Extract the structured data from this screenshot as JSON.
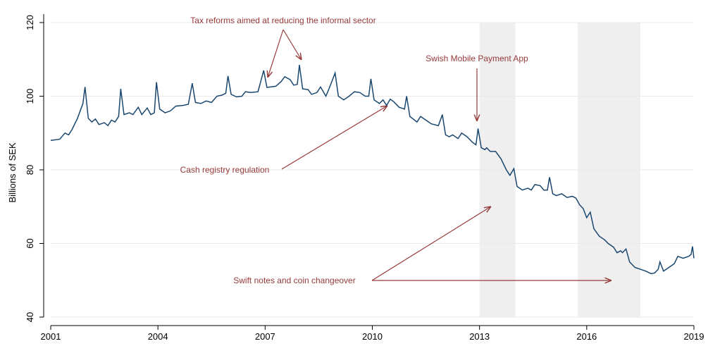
{
  "chart_data": {
    "type": "line",
    "y_label": "Billions of SEK",
    "color": "#1a476f",
    "shade_color": "#efefef",
    "shaded_periods": [
      [
        2013.0,
        2014.0
      ],
      [
        2015.75,
        2017.5
      ]
    ],
    "annotations": [
      "Tax reforms aimed at reducing the informal sector",
      "Swish Mobile Payment App",
      "Cash registry regulation",
      "Swift notes and coin changeover"
    ],
    "xlim": [
      2001,
      2019
    ],
    "xticks": [
      2001,
      2004,
      2007,
      2010,
      2013,
      2016,
      2019
    ],
    "ylim": [
      40,
      120
    ],
    "yticks": [
      40,
      60,
      80,
      100,
      120
    ],
    "grid": true,
    "x": [
      2001.0,
      2001.25,
      2001.4,
      2001.5,
      2001.6,
      2001.75,
      2001.9,
      2001.96,
      2002.05,
      2002.15,
      2002.25,
      2002.35,
      2002.5,
      2002.6,
      2002.7,
      2002.8,
      2002.9,
      2002.96,
      2003.05,
      2003.2,
      2003.3,
      2003.45,
      2003.55,
      2003.7,
      2003.8,
      2003.9,
      2003.96,
      2004.05,
      2004.2,
      2004.35,
      2004.5,
      2004.7,
      2004.85,
      2004.96,
      2005.05,
      2005.2,
      2005.35,
      2005.5,
      2005.65,
      2005.8,
      2005.9,
      2005.96,
      2006.05,
      2006.2,
      2006.35,
      2006.45,
      2006.6,
      2006.8,
      2006.96,
      2007.05,
      2007.3,
      2007.45,
      2007.55,
      2007.7,
      2007.8,
      2007.9,
      2007.96,
      2008.05,
      2008.2,
      2008.3,
      2008.45,
      2008.55,
      2008.7,
      2008.8,
      2008.96,
      2009.05,
      2009.2,
      2009.35,
      2009.5,
      2009.65,
      2009.8,
      2009.9,
      2009.96,
      2010.05,
      2010.2,
      2010.3,
      2010.4,
      2010.5,
      2010.6,
      2010.75,
      2010.9,
      2010.96,
      2011.05,
      2011.25,
      2011.35,
      2011.5,
      2011.65,
      2011.85,
      2011.96,
      2012.05,
      2012.15,
      2012.25,
      2012.4,
      2012.5,
      2012.65,
      2012.8,
      2012.9,
      2012.96,
      2013.05,
      2013.15,
      2013.2,
      2013.3,
      2013.45,
      2013.6,
      2013.75,
      2013.85,
      2013.96,
      2014.05,
      2014.2,
      2014.35,
      2014.45,
      2014.55,
      2014.7,
      2014.8,
      2014.9,
      2014.96,
      2015.05,
      2015.15,
      2015.3,
      2015.45,
      2015.6,
      2015.7,
      2015.8,
      2015.9,
      2016.0,
      2016.1,
      2016.2,
      2016.35,
      2016.5,
      2016.6,
      2016.75,
      2016.85,
      2016.95,
      2017.0,
      2017.1,
      2017.2,
      2017.35,
      2017.5,
      2017.65,
      2017.8,
      2017.9,
      2018.0,
      2018.05,
      2018.15,
      2018.3,
      2018.45,
      2018.55,
      2018.7,
      2018.85,
      2018.92,
      2018.96,
      2019.0
    ],
    "values": [
      88,
      88.3,
      90,
      89.5,
      91,
      94,
      98,
      102.5,
      94,
      93,
      93.8,
      92.3,
      92.8,
      92,
      93.5,
      93,
      94.5,
      102,
      95,
      95.5,
      95,
      97,
      95,
      96.8,
      95,
      95.5,
      103.8,
      96.5,
      95.5,
      96,
      97.3,
      97.5,
      97.8,
      103.5,
      98.3,
      98,
      98.7,
      98.3,
      100,
      100.3,
      100.8,
      105.5,
      100.5,
      99.8,
      100,
      101.2,
      101,
      101.2,
      107,
      102.4,
      102.7,
      104,
      105.3,
      104.5,
      103,
      103.2,
      108.5,
      102,
      101.8,
      100.5,
      101,
      102.5,
      100,
      102.3,
      106.3,
      100,
      99,
      100,
      101.2,
      101,
      100,
      100,
      104.7,
      99,
      98,
      99,
      97.5,
      99.2,
      98.5,
      97,
      96.5,
      100,
      94.5,
      93,
      94.5,
      93.5,
      92.5,
      92,
      95,
      89.5,
      89,
      89.5,
      88.5,
      90,
      89,
      87.5,
      86.8,
      91.2,
      86,
      85.5,
      86,
      85,
      85,
      83,
      80,
      78.5,
      80.3,
      75.5,
      74.5,
      75,
      74.5,
      76,
      75.7,
      74.5,
      74.5,
      78,
      73.5,
      73,
      73.5,
      72.5,
      72.8,
      72.3,
      70.5,
      69.5,
      67,
      68.5,
      64,
      62,
      61,
      60,
      59,
      57.5,
      58,
      57.5,
      58.5,
      55,
      53.5,
      53,
      52.5,
      51.8,
      52,
      53,
      55,
      52.5,
      53.5,
      54.5,
      56.5,
      56,
      56.5,
      57,
      59.2,
      56
    ]
  }
}
